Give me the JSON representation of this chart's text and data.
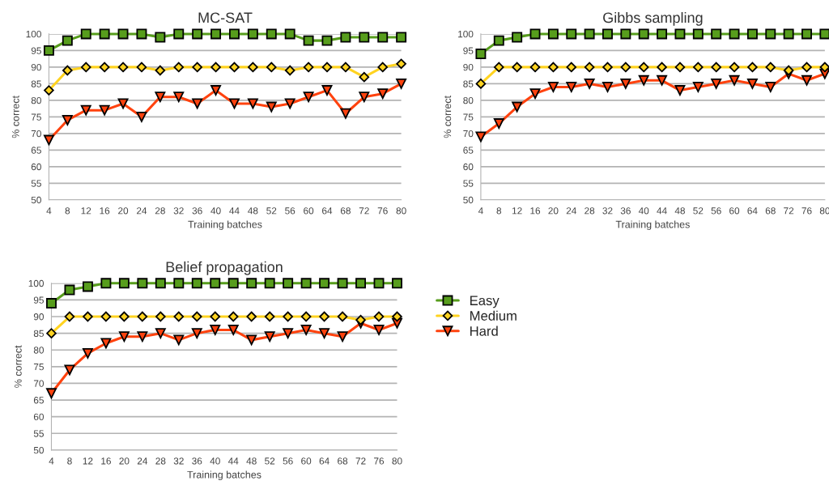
{
  "chart_data": [
    {
      "type": "line",
      "title": "MC-SAT",
      "xlabel": "Training batches",
      "ylabel": "% correct",
      "categories": [
        "4",
        "8",
        "12",
        "16",
        "20",
        "24",
        "28",
        "32",
        "36",
        "40",
        "44",
        "48",
        "52",
        "56",
        "60",
        "64",
        "68",
        "72",
        "76",
        "80"
      ],
      "ylim": [
        50,
        100
      ],
      "yticks": [
        50,
        55,
        60,
        65,
        70,
        75,
        80,
        85,
        90,
        95,
        100
      ],
      "grid": "y",
      "series": [
        {
          "color": "#579d1c",
          "marker": "square",
          "values": [
            95,
            98,
            100,
            100,
            100,
            100,
            99,
            100,
            100,
            100,
            100,
            100,
            100,
            100,
            98,
            98,
            99,
            99,
            99,
            99
          ]
        },
        {
          "color": "#ffd320",
          "marker": "diamond",
          "values": [
            83,
            89,
            90,
            90,
            90,
            90,
            89,
            90,
            90,
            90,
            90,
            90,
            90,
            89,
            90,
            90,
            90,
            87,
            90,
            91
          ]
        },
        {
          "color": "#ff420e",
          "marker": "triangle",
          "values": [
            68,
            74,
            77,
            77,
            79,
            75,
            81,
            81,
            79,
            83,
            79,
            79,
            78,
            79,
            81,
            83,
            76,
            81,
            82,
            85
          ]
        }
      ]
    },
    {
      "type": "line",
      "title": "Gibbs sampling",
      "xlabel": "Training batches",
      "ylabel": "% correct",
      "categories": [
        "4",
        "8",
        "12",
        "16",
        "20",
        "24",
        "28",
        "32",
        "36",
        "40",
        "44",
        "48",
        "52",
        "56",
        "60",
        "64",
        "68",
        "72",
        "76",
        "80"
      ],
      "ylim": [
        50,
        100
      ],
      "yticks": [
        50,
        55,
        60,
        65,
        70,
        75,
        80,
        85,
        90,
        95,
        100
      ],
      "grid": "y",
      "series": [
        {
          "color": "#579d1c",
          "marker": "square",
          "values": [
            94,
            98,
            99,
            100,
            100,
            100,
            100,
            100,
            100,
            100,
            100,
            100,
            100,
            100,
            100,
            100,
            100,
            100,
            100,
            100
          ]
        },
        {
          "color": "#ffd320",
          "marker": "diamond",
          "values": [
            85,
            90,
            90,
            90,
            90,
            90,
            90,
            90,
            90,
            90,
            90,
            90,
            90,
            90,
            90,
            90,
            90,
            89,
            90,
            90
          ]
        },
        {
          "color": "#ff420e",
          "marker": "triangle",
          "values": [
            69,
            73,
            78,
            82,
            84,
            84,
            85,
            84,
            85,
            86,
            86,
            83,
            84,
            85,
            86,
            85,
            84,
            88,
            86,
            88
          ]
        }
      ]
    },
    {
      "type": "line",
      "title": "Belief propagation",
      "xlabel": "Training batches",
      "ylabel": "% correct",
      "categories": [
        "4",
        "8",
        "12",
        "16",
        "20",
        "24",
        "28",
        "32",
        "36",
        "40",
        "44",
        "48",
        "52",
        "56",
        "60",
        "64",
        "68",
        "72",
        "76",
        "80"
      ],
      "ylim": [
        50,
        100
      ],
      "yticks": [
        50,
        55,
        60,
        65,
        70,
        75,
        80,
        85,
        90,
        95,
        100
      ],
      "grid": "y",
      "legend": "top right",
      "series": [
        {
          "name": "Easy",
          "color": "#579d1c",
          "marker": "square",
          "values": [
            94,
            98,
            99,
            100,
            100,
            100,
            100,
            100,
            100,
            100,
            100,
            100,
            100,
            100,
            100,
            100,
            100,
            100,
            100,
            100
          ]
        },
        {
          "name": "Medium",
          "color": "#ffd320",
          "marker": "diamond",
          "values": [
            85,
            90,
            90,
            90,
            90,
            90,
            90,
            90,
            90,
            90,
            90,
            90,
            90,
            90,
            90,
            90,
            90,
            89,
            90,
            90
          ]
        },
        {
          "name": "Hard",
          "color": "#ff420e",
          "marker": "triangle",
          "values": [
            67,
            74,
            79,
            82,
            84,
            84,
            85,
            83,
            85,
            86,
            86,
            83,
            84,
            85,
            86,
            85,
            84,
            88,
            86,
            88
          ]
        }
      ]
    }
  ]
}
